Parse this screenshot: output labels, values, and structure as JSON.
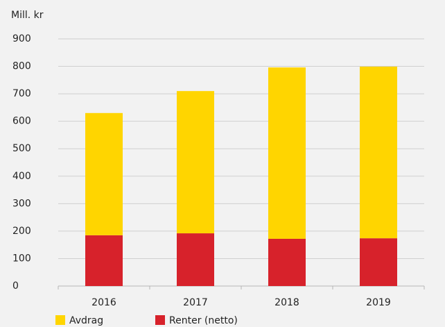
{
  "chart_data": {
    "type": "stacked_bar",
    "ylabel": "Mill. kr",
    "categories": [
      "2016",
      "2017",
      "2018",
      "2019"
    ],
    "series": [
      {
        "name": "Renter (netto)",
        "color": "#d7222b",
        "values": [
          185,
          192,
          172,
          174
        ]
      },
      {
        "name": "Avdrag",
        "color": "#ffd500",
        "values": [
          445,
          518,
          624,
          625
        ]
      }
    ],
    "legend_order": [
      "Avdrag",
      "Renter (netto)"
    ],
    "ylim": [
      0,
      900
    ],
    "yticks": [
      0,
      100,
      200,
      300,
      400,
      500,
      600,
      700,
      800,
      900
    ],
    "grid": true
  }
}
